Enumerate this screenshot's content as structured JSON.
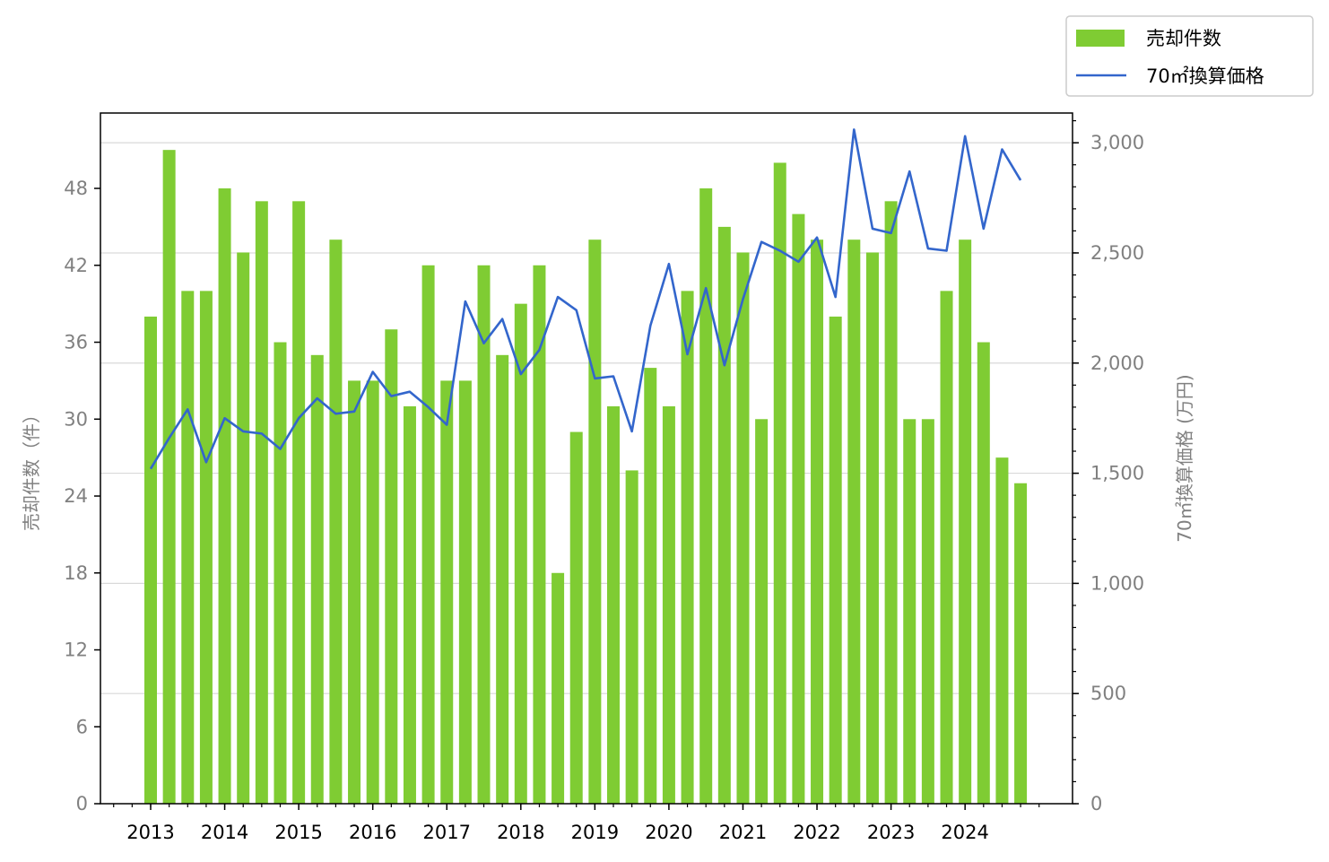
{
  "chart_data": {
    "type": "bar+line",
    "x_labels": [
      "2013",
      "2014",
      "2015",
      "2016",
      "2017",
      "2018",
      "2019",
      "2020",
      "2021",
      "2022",
      "2023",
      "2024"
    ],
    "quarters_per_year": 4,
    "series": [
      {
        "name": "売却件数",
        "type": "bar",
        "axis": "left",
        "color": "#7fcc33",
        "values": [
          38,
          51,
          40,
          40,
          48,
          43,
          47,
          36,
          47,
          35,
          44,
          33,
          33,
          37,
          31,
          42,
          33,
          33,
          42,
          35,
          39,
          42,
          18,
          29,
          44,
          31,
          26,
          34,
          31,
          40,
          48,
          45,
          43,
          30,
          50,
          46,
          44,
          38,
          44,
          43,
          47,
          30,
          30,
          40,
          44,
          36,
          27,
          25
        ]
      },
      {
        "name": "70㎡換算価格",
        "type": "line",
        "axis": "right",
        "color": "#3366cc",
        "values": [
          1520,
          1660,
          1790,
          1550,
          1750,
          1690,
          1680,
          1610,
          1750,
          1840,
          1770,
          1780,
          1960,
          1850,
          1870,
          1800,
          1720,
          2280,
          2090,
          2200,
          1950,
          2060,
          2300,
          2240,
          1930,
          1940,
          1690,
          2170,
          2450,
          2040,
          2340,
          1990,
          2290,
          2550,
          2510,
          2460,
          2570,
          2300,
          3060,
          2610,
          2590,
          2870,
          2520,
          2510,
          3030,
          2610,
          2970,
          2830
        ]
      }
    ],
    "y_left": {
      "label": "売却件数（件）",
      "min": 0,
      "max": 53.88,
      "ticks": [
        0,
        6,
        12,
        18,
        24,
        30,
        36,
        42,
        48
      ],
      "tick_labels": [
        "0",
        "6",
        "12",
        "18",
        "24",
        "30",
        "36",
        "42",
        "48"
      ]
    },
    "y_right": {
      "label": "70㎡換算価格 (万円)",
      "min": 0,
      "max": 3135,
      "ticks": [
        0,
        500,
        1000,
        1500,
        2000,
        2500,
        3000
      ],
      "tick_labels": [
        "0",
        "500",
        "1,000",
        "1,500",
        "2,000",
        "2,500",
        "3,000"
      ],
      "minor_step": 100
    },
    "grid": "horizontal, right axis major ticks",
    "legend_position": "top-right, outside plot"
  }
}
